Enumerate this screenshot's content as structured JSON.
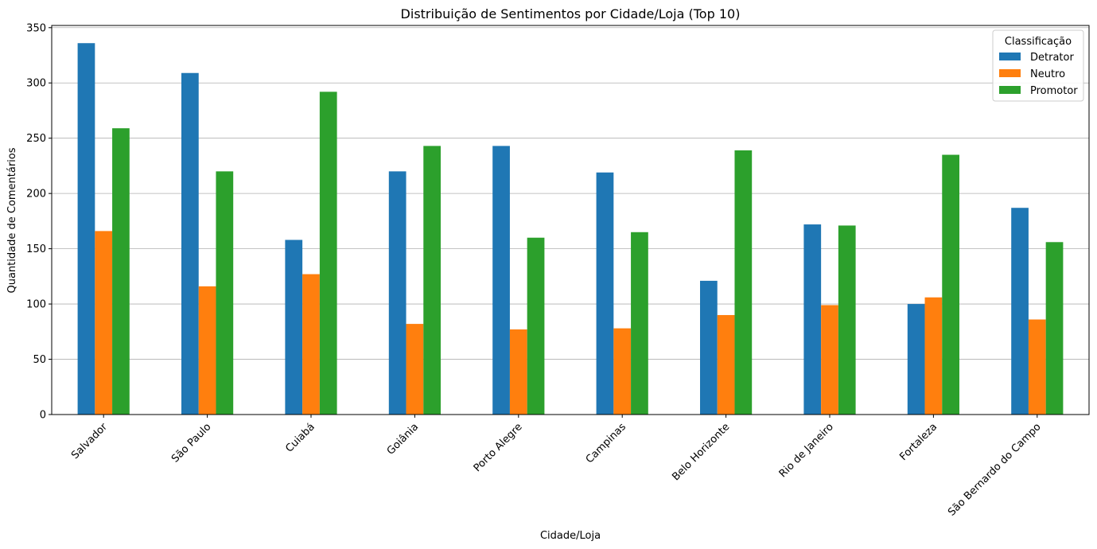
{
  "chart_data": {
    "type": "bar",
    "title": "Distribuição de Sentimentos por Cidade/Loja (Top 10)",
    "xlabel": "Cidade/Loja",
    "ylabel": "Quantidade de Comentários",
    "categories": [
      "Salvador",
      "São Paulo",
      "Cuiabá",
      "Goiânia",
      "Porto Alegre",
      "Campinas",
      "Belo Horizonte",
      "Rio de Janeiro",
      "Fortaleza",
      "São Bernardo do Campo"
    ],
    "series": [
      {
        "name": "Detrator",
        "color": "#1f77b4",
        "values": [
          336,
          309,
          158,
          220,
          243,
          219,
          121,
          172,
          100,
          187
        ]
      },
      {
        "name": "Neutro",
        "color": "#ff7f0e",
        "values": [
          166,
          116,
          127,
          82,
          77,
          78,
          90,
          99,
          106,
          86
        ]
      },
      {
        "name": "Promotor",
        "color": "#2ca02c",
        "values": [
          259,
          220,
          292,
          243,
          160,
          165,
          239,
          171,
          235,
          156
        ]
      }
    ],
    "ylim": [
      0,
      352
    ],
    "yticks": [
      0,
      50,
      100,
      150,
      200,
      250,
      300,
      350
    ],
    "grid": "horizontal",
    "legend_title": "Classificação",
    "legend_position": "top-right"
  }
}
